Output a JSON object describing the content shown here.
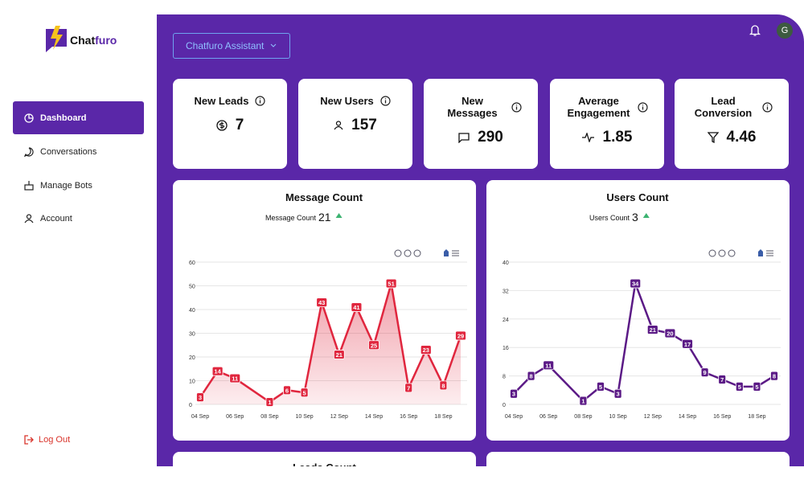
{
  "brand": {
    "first": "Chat",
    "second": "furo"
  },
  "nav": [
    "Dashboard",
    "Conversations",
    "Manage Bots",
    "Account"
  ],
  "logout": "Log Out",
  "header": {
    "assistant": "Chatfuro Assistant",
    "avatar": "G"
  },
  "stats": [
    {
      "label": "New Leads",
      "value": 7
    },
    {
      "label": "New Users",
      "value": 157
    },
    {
      "label": "New Messages",
      "value": 290
    },
    {
      "label": "Average Engagement",
      "value": 1.85
    },
    {
      "label": "Lead Conversion",
      "value": 4.46
    }
  ],
  "chart_data": [
    {
      "type": "line",
      "title": "Message Count",
      "summary_label": "Message Count",
      "summary_value": 21,
      "color": "#e0263e",
      "categories": [
        "04 Sep",
        null,
        "06 Sep",
        null,
        "08 Sep",
        null,
        "10 Sep",
        null,
        "12 Sep",
        null,
        "14 Sep",
        null,
        "16 Sep",
        null,
        "18 Sep",
        null
      ],
      "values": [
        3,
        14,
        11,
        6,
        1,
        6,
        5,
        43,
        21,
        41,
        25,
        51,
        7,
        23,
        8,
        29
      ],
      "value_labels": [
        "3",
        "14",
        "11",
        null,
        "1",
        "6",
        "5",
        "43",
        "21",
        "41",
        "25",
        "51",
        "7",
        "23",
        "8",
        "29"
      ],
      "ylim": [
        0,
        60
      ],
      "yticks": [
        0,
        10,
        20,
        30,
        40,
        50,
        60
      ],
      "area": true
    },
    {
      "type": "line",
      "title": "Users Count",
      "summary_label": "Users Count",
      "summary_value": 3,
      "color": "#5b1a86",
      "categories": [
        "04 Sep",
        null,
        "06 Sep",
        null,
        "08 Sep",
        null,
        "10 Sep",
        null,
        "12 Sep",
        null,
        "14 Sep",
        null,
        "16 Sep",
        null,
        "18 Sep",
        null
      ],
      "values": [
        3,
        8,
        11,
        6,
        1,
        5,
        3,
        34,
        21,
        20,
        17,
        9,
        7,
        5,
        5,
        8
      ],
      "value_labels": [
        "3",
        "8",
        "11",
        null,
        "1",
        "5",
        "3",
        "34",
        "21",
        "20",
        "17",
        "9",
        "7",
        "5",
        "5",
        "8"
      ],
      "ylim": [
        0,
        40
      ],
      "yticks": [
        0,
        8,
        16,
        24,
        32,
        40
      ],
      "area": false
    }
  ],
  "partial": {
    "title": "Leads Count"
  }
}
